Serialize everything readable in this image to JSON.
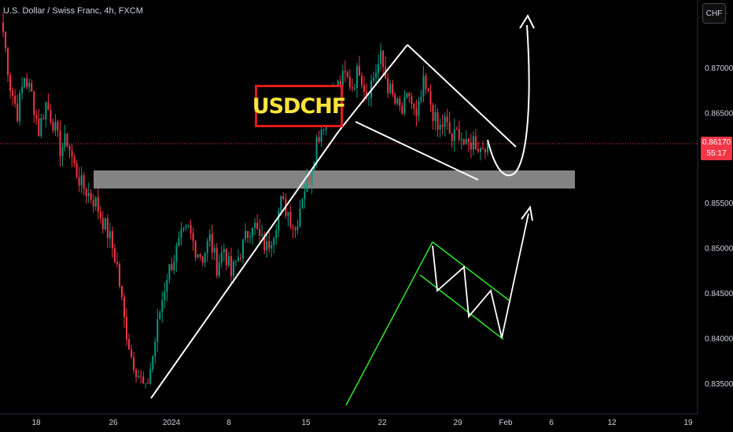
{
  "header": {
    "symbol_title": "U.S. Dollar / Swiss Franc, 4h, FXCM",
    "currency_button": "CHF"
  },
  "annotation": {
    "ticker_label": "USDCHF"
  },
  "price_badge": {
    "price": "0.86170",
    "countdown": "55:17"
  },
  "colors": {
    "background": "#000000",
    "up_candle": "#089981",
    "down_candle": "#f23645",
    "price_line": "#f23645",
    "label_border": "#e21a1a",
    "label_text": "#ffe43a",
    "flag_pattern": "#2ee82e",
    "drawing_lines": "#ffffff",
    "zone": "#9a9a9a"
  },
  "chart_data": {
    "type": "candlestick",
    "interval": "4h",
    "x_tick_labels": [
      "18",
      "26",
      "2024",
      "8",
      "15",
      "22",
      "29",
      "Feb",
      "6",
      "12",
      "19"
    ],
    "y_tick_labels": [
      "0.87000",
      "0.86500",
      "0.85500",
      "0.85000",
      "0.84500",
      "0.84000",
      "0.83500"
    ],
    "y_range": [
      0.8315,
      0.8775
    ],
    "last_price": 0.8617,
    "support_zone": [
      0.8569,
      0.8589
    ],
    "series_close_path": [
      0.874,
      0.868,
      0.865,
      0.869,
      0.867,
      0.863,
      0.866,
      0.864,
      0.861,
      0.862,
      0.859,
      0.857,
      0.856,
      0.855,
      0.853,
      0.851,
      0.848,
      0.842,
      0.838,
      0.836,
      0.834,
      0.838,
      0.843,
      0.847,
      0.849,
      0.851,
      0.852,
      0.85,
      0.849,
      0.851,
      0.848,
      0.85,
      0.847,
      0.849,
      0.851,
      0.853,
      0.851,
      0.85,
      0.852,
      0.855,
      0.854,
      0.852,
      0.856,
      0.858,
      0.862,
      0.864,
      0.866,
      0.868,
      0.869,
      0.868,
      0.87,
      0.867,
      0.869,
      0.871,
      0.868,
      0.866,
      0.865,
      0.867,
      0.864,
      0.868,
      0.866,
      0.863,
      0.864,
      0.862,
      0.863,
      0.861,
      0.862,
      0.861,
      0.862
    ]
  }
}
